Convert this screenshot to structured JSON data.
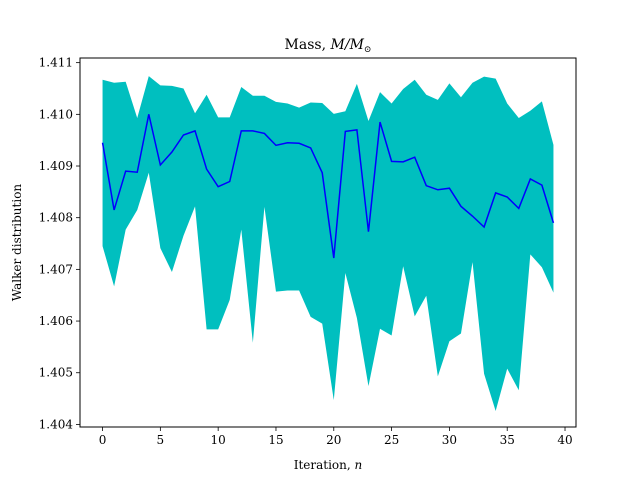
{
  "chart_data": {
    "type": "area",
    "title": "Mass,",
    "title_math": "M/M",
    "title_sub": "⊙",
    "xlabel": "Iteration,",
    "xlabel_math": "n",
    "ylabel": "Walker distribution",
    "xlim": [
      -1.95,
      40.95
    ],
    "ylim": [
      1.40395,
      1.41109
    ],
    "xticks": [
      0,
      5,
      10,
      15,
      20,
      25,
      30,
      35,
      40
    ],
    "yticks": [
      1.404,
      1.405,
      1.406,
      1.407,
      1.408,
      1.409,
      1.41,
      1.411
    ],
    "ytick_labels": [
      "1.404",
      "1.405",
      "1.406",
      "1.407",
      "1.408",
      "1.409",
      "1.410",
      "1.411"
    ],
    "line_color": "#0000ff",
    "band_color": "#00bfbf",
    "x": [
      0,
      1,
      2,
      3,
      4,
      5,
      6,
      7,
      8,
      9,
      10,
      11,
      12,
      13,
      14,
      15,
      16,
      17,
      18,
      19,
      20,
      21,
      22,
      23,
      24,
      25,
      26,
      27,
      28,
      29,
      30,
      31,
      32,
      33,
      34,
      35,
      36,
      37,
      38,
      39
    ],
    "series": [
      {
        "name": "median",
        "values": [
          1.40945,
          1.40815,
          1.4089,
          1.40888,
          1.41,
          1.40902,
          1.40927,
          1.4096,
          1.40968,
          1.40894,
          1.4086,
          1.4087,
          1.40968,
          1.40968,
          1.40963,
          1.4094,
          1.40945,
          1.40944,
          1.40935,
          1.40887,
          1.40722,
          1.40967,
          1.4097,
          1.40773,
          1.40985,
          1.40909,
          1.40908,
          1.40917,
          1.40862,
          1.40854,
          1.40857,
          1.40822,
          1.40803,
          1.40782,
          1.40848,
          1.4084,
          1.40818,
          1.40875,
          1.40863,
          1.4079
        ]
      },
      {
        "name": "upper",
        "values": [
          1.41067,
          1.41061,
          1.41063,
          1.40993,
          1.41074,
          1.41056,
          1.41055,
          1.4105,
          1.41002,
          1.41038,
          1.40994,
          1.40994,
          1.41053,
          1.41036,
          1.41036,
          1.41024,
          1.41021,
          1.41013,
          1.41023,
          1.41022,
          1.41001,
          1.41006,
          1.41059,
          1.40987,
          1.41043,
          1.41021,
          1.41049,
          1.41067,
          1.41038,
          1.41028,
          1.4106,
          1.41033,
          1.41061,
          1.41073,
          1.41069,
          1.41021,
          1.40993,
          1.41007,
          1.41025,
          1.40941
        ]
      },
      {
        "name": "lower",
        "values": [
          1.40745,
          1.40667,
          1.40777,
          1.40815,
          1.40887,
          1.40741,
          1.40695,
          1.40765,
          1.40822,
          1.40584,
          1.40584,
          1.40641,
          1.40777,
          1.40558,
          1.40821,
          1.40657,
          1.40659,
          1.40659,
          1.40608,
          1.40595,
          1.40447,
          1.40693,
          1.40606,
          1.40474,
          1.40585,
          1.40572,
          1.40706,
          1.40609,
          1.40649,
          1.40493,
          1.40561,
          1.40576,
          1.40714,
          1.40498,
          1.40426,
          1.40508,
          1.40466,
          1.40729,
          1.40704,
          1.40655
        ]
      }
    ],
    "grid": false,
    "legend": "none"
  }
}
